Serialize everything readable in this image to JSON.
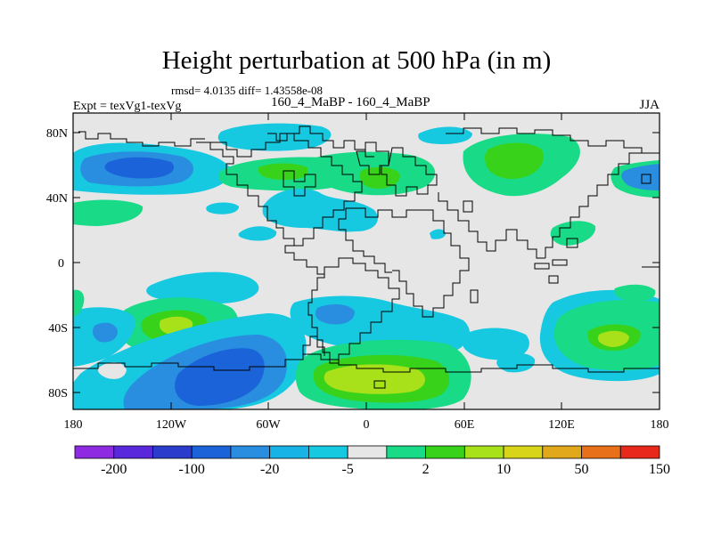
{
  "header": {
    "title": "Height perturbation at 500 hPa (in m)",
    "stats": "rmsd= 4.0135 diff= 1.43558e-08",
    "experiment": "Expt = texVg1-texVg",
    "runs": "160_4_MaBP - 160_4_MaBP",
    "season": "JJA"
  },
  "axes": {
    "y_ticks": [
      "80N",
      "40N",
      "0",
      "40S",
      "80S"
    ],
    "x_ticks": [
      "180",
      "120W",
      "60W",
      "0",
      "60E",
      "120E",
      "180"
    ]
  },
  "colorbar": {
    "colors": [
      "#8e2be2",
      "#5a28dc",
      "#2b3ccc",
      "#1b63d8",
      "#2a8ee0",
      "#18b3e6",
      "#16c8e0",
      "#e6e6e6",
      "#19da86",
      "#39d21a",
      "#a8e01a",
      "#d8d41a",
      "#e0a81a",
      "#e8701a",
      "#e8281a"
    ],
    "labels": [
      "-200",
      "-100",
      "-20",
      "-5",
      "2",
      "10",
      "50",
      "150"
    ]
  },
  "colors": {
    "background_field": "#e6e6e6",
    "coastline": "#000000"
  }
}
